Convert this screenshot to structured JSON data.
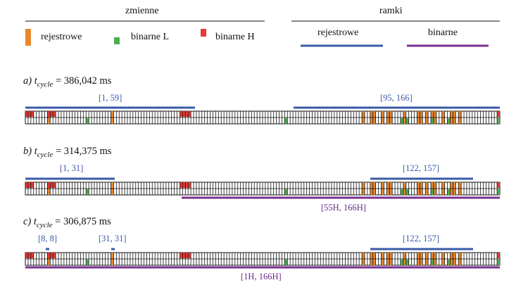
{
  "legend": {
    "group_vars": "zmienne",
    "group_frames": "ramki",
    "vars": [
      {
        "label": "rejestrowe",
        "color": "#e8872e"
      },
      {
        "label": "binarne L",
        "color": "#4caf50"
      },
      {
        "label": "binarne H",
        "color": "#e53935"
      }
    ],
    "frames": [
      {
        "label": "rejestrowe",
        "color": "#3a5aa8"
      },
      {
        "label": "binarne",
        "color": "#7b2f8f"
      }
    ]
  },
  "panels": [
    {
      "letter": "a)",
      "var": "t",
      "sub": "cycle",
      "value": "= 386,042 ms",
      "register_frames": [
        "[1, 59]",
        "[95, 166]"
      ],
      "binary_frames": []
    },
    {
      "letter": "b)",
      "var": "t",
      "sub": "cycle",
      "value": "= 314,375 ms",
      "register_frames": [
        "[1, 31]",
        "[122, 157]"
      ],
      "binary_frames": [
        "[55H, 166H]"
      ]
    },
    {
      "letter": "c)",
      "var": "t",
      "sub": "cycle",
      "value": "= 306,875 ms",
      "register_frames": [
        "[8, 8]",
        "[31, 31]",
        "[122, 157]"
      ],
      "binary_frames": [
        "[1H, 166H]"
      ]
    }
  ],
  "memory_row": {
    "cell_count": 172,
    "orange_cells": [
      8,
      31,
      122,
      125,
      126,
      129,
      131,
      132,
      137,
      142,
      143,
      145,
      147,
      148,
      151,
      154,
      155,
      157
    ],
    "green_cells": [
      22,
      94,
      136,
      138,
      147,
      153,
      171
    ],
    "red_cells": [
      0,
      2,
      8,
      10,
      56,
      59
    ],
    "split_cells": [
      1,
      9,
      57,
      58,
      171
    ]
  }
}
